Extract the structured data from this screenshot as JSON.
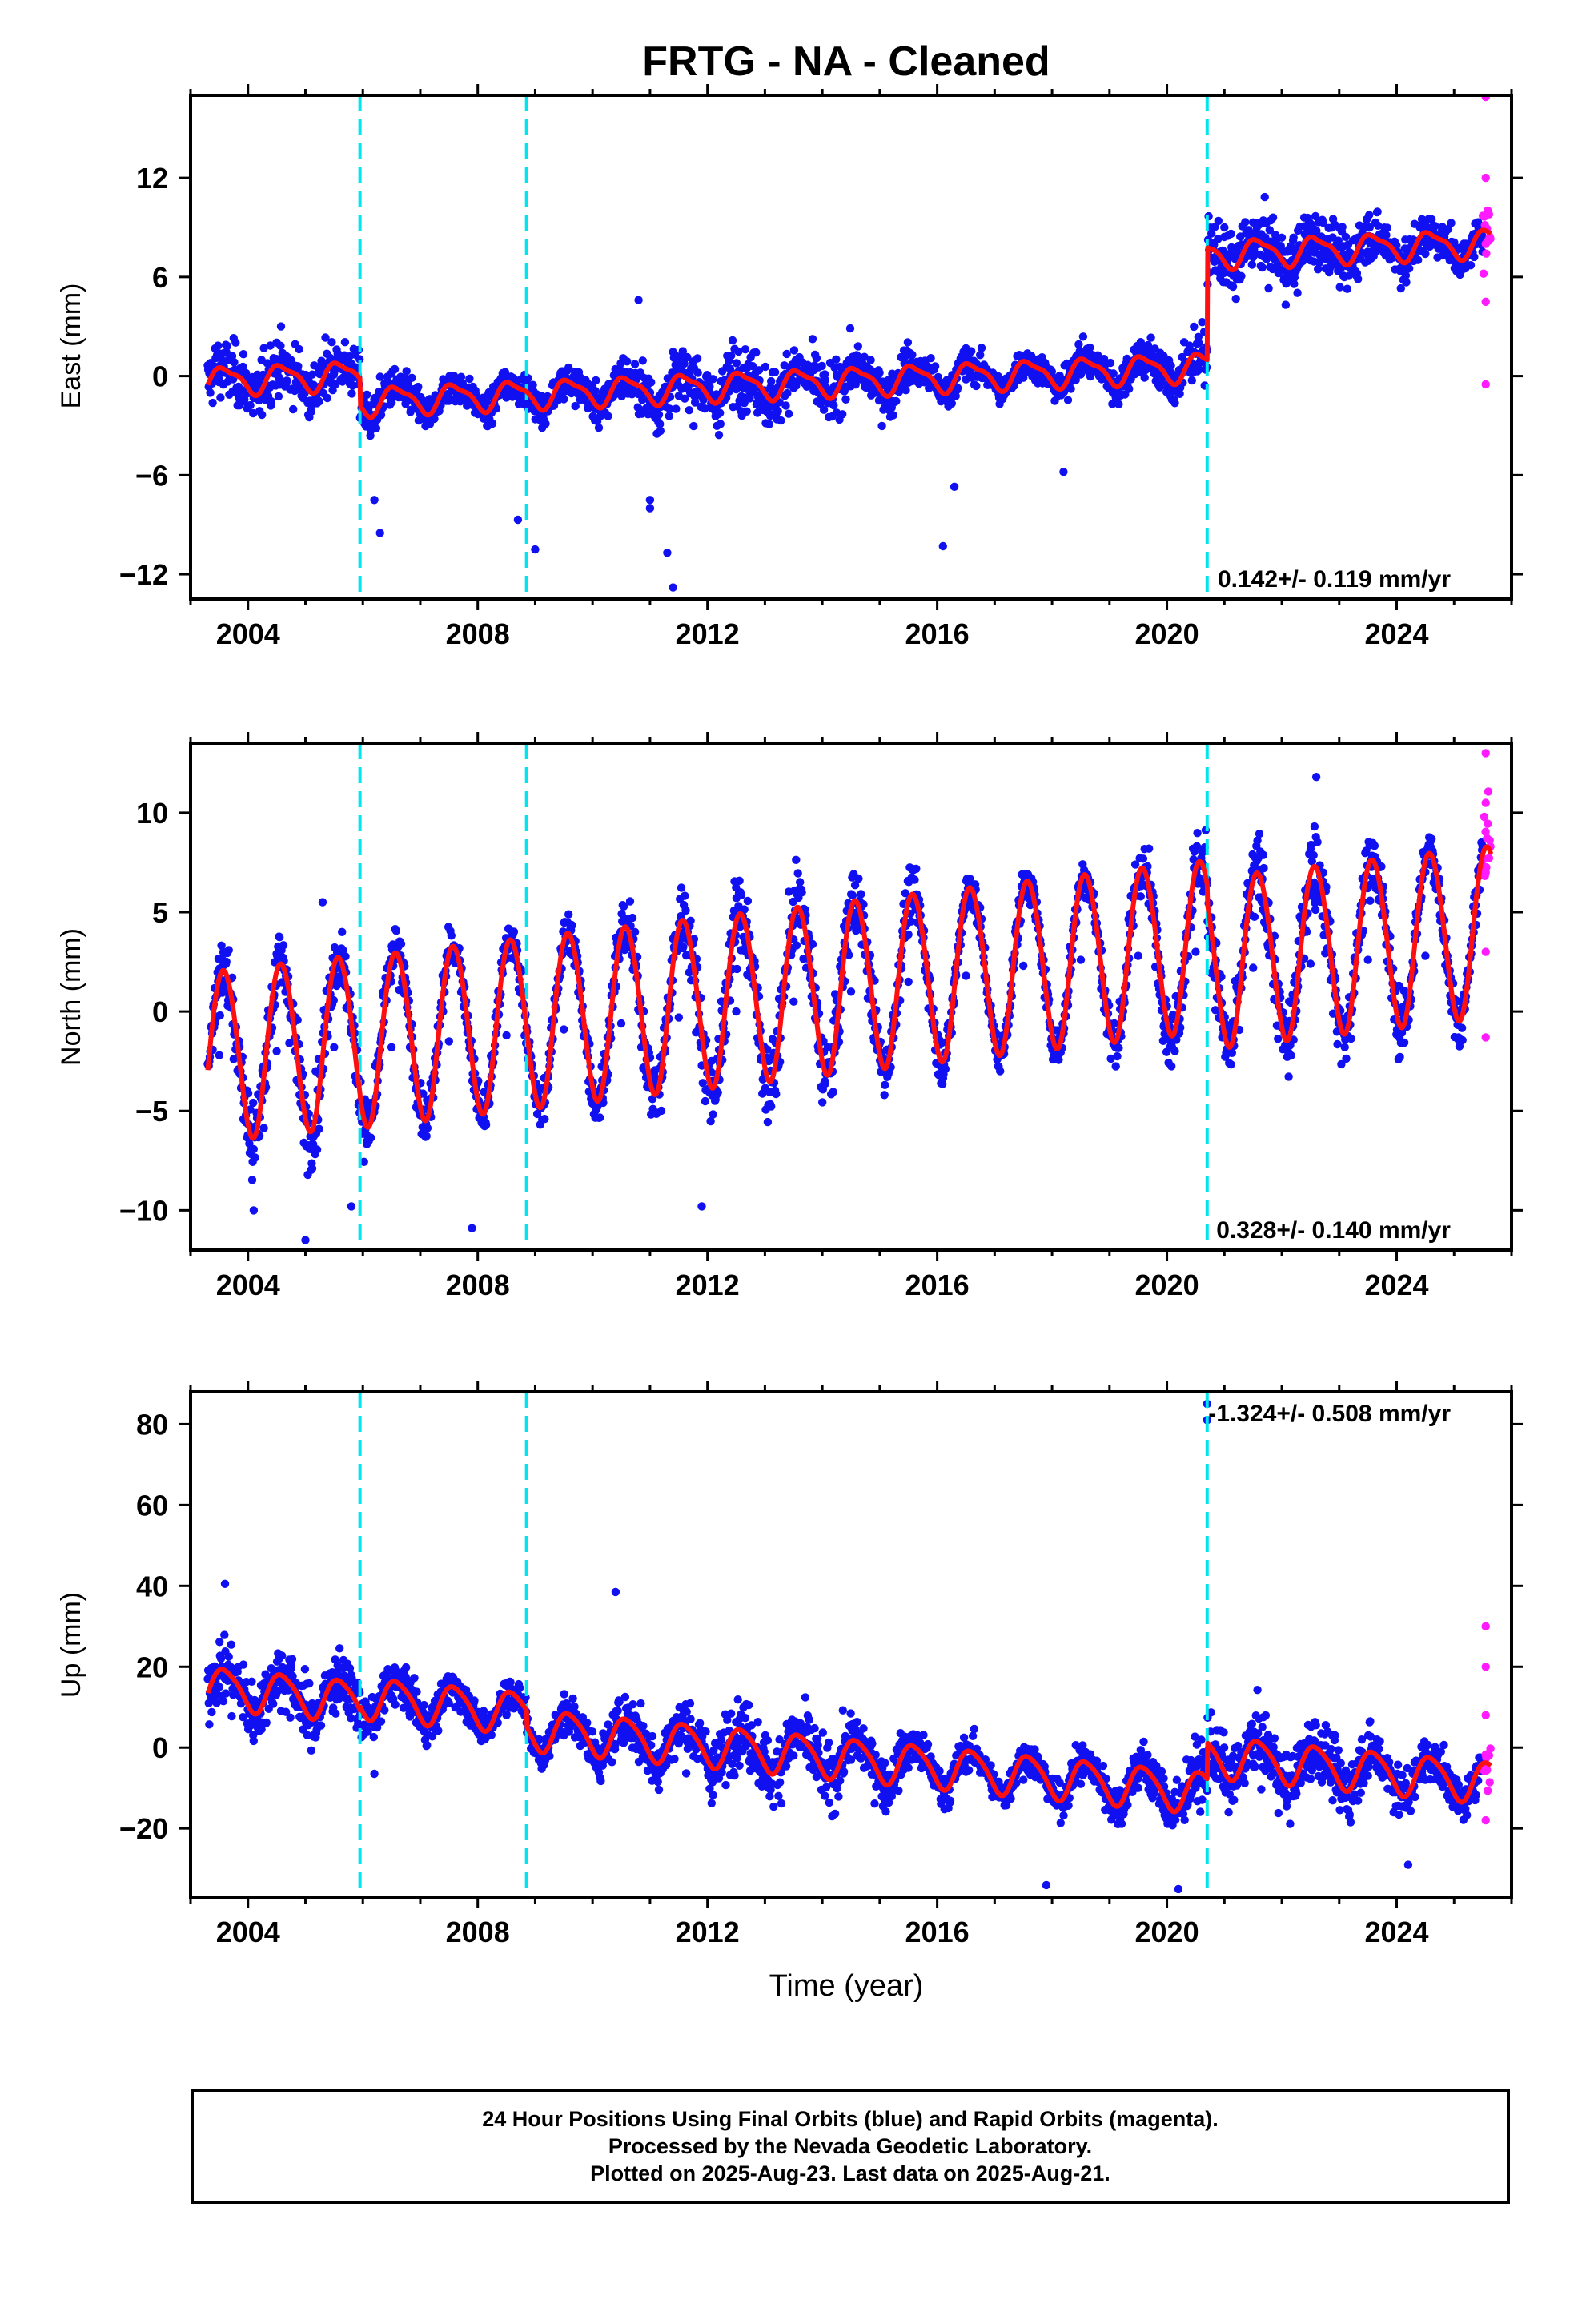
{
  "title": "FRTG  - NA - Cleaned",
  "xlabel": "Time (year)",
  "footer": {
    "line1": "24 Hour Positions Using Final Orbits (blue) and Rapid Orbits (magenta).",
    "line2": "Processed by the Nevada Geodetic Laboratory.",
    "line3": "Plotted on 2025-Aug-23. Last data on 2025-Aug-21."
  },
  "colors": {
    "final_orbits": "#1010f0",
    "rapid_orbits": "#ff1aff",
    "model": "#ff1010",
    "offsets": "#00e5ee"
  },
  "chart_data": [
    {
      "type": "scatter",
      "component": "east",
      "ylabel": "East (mm)",
      "rate_label": "0.142+/- 0.119 mm/yr",
      "xlim": [
        2003.0,
        2026.0
      ],
      "ylim": [
        -13.5,
        17.0
      ],
      "xticks": [
        2004,
        2008,
        2012,
        2016,
        2020,
        2024
      ],
      "yticks": [
        -12,
        -6,
        0,
        6,
        12
      ],
      "ytick_labels": [
        "−12",
        "−6",
        "0",
        "6",
        "12"
      ],
      "offset_epochs": [
        2005.95,
        2008.85,
        2020.7
      ],
      "start": 2003.3,
      "end": 2025.64,
      "rapid_start": 2025.5,
      "series": [
        {
          "label": "final_orbits",
          "x": [
            2003.5,
            2004.5,
            2005.5,
            2006.5,
            2007.5,
            2008.5,
            2009.5,
            2010.5,
            2011.5,
            2012.5,
            2013.5,
            2014.5,
            2015.5,
            2016.5,
            2017.5,
            2018.5,
            2019.5,
            2020.5,
            2021.5,
            2022.5,
            2023.5,
            2024.5
          ],
          "y": [
            -0.2,
            0.1,
            0.2,
            -1.6,
            -1.5,
            -1.3,
            -1.4,
            -1.0,
            -1.2,
            -0.8,
            -0.6,
            -0.4,
            -0.4,
            -0.2,
            -0.1,
            0.1,
            0.3,
            0.6,
            7.2,
            7.0,
            7.3,
            7.4
          ]
        },
        {
          "label": "rapid_orbits",
          "x": [
            2025.55,
            2025.55,
            2025.55,
            2025.55,
            2025.55
          ],
          "y": [
            17.0,
            12.0,
            8.0,
            4.5,
            -0.5
          ]
        }
      ],
      "outliers": [
        [
          2006.3,
          -9.5
        ],
        [
          2006.2,
          -7.5
        ],
        [
          2009.0,
          -10.5
        ],
        [
          2008.7,
          -8.7
        ],
        [
          2011.0,
          -7.5
        ],
        [
          2011.0,
          -8.0
        ],
        [
          2011.3,
          -10.7
        ],
        [
          2011.4,
          -12.8
        ],
        [
          2010.8,
          4.6
        ],
        [
          2016.1,
          -10.3
        ],
        [
          2016.3,
          -6.7
        ],
        [
          2018.2,
          -5.8
        ],
        [
          2021.0,
          9.0
        ]
      ],
      "model": {
        "segments": [
          {
            "from": 2003.3,
            "to": 2005.95,
            "intercept": -0.3,
            "rate": 0.142
          },
          {
            "from": 2005.95,
            "to": 2008.85,
            "intercept": -1.9,
            "rate": 0.142
          },
          {
            "from": 2008.85,
            "to": 2020.7,
            "intercept": -1.9,
            "rate": 0.142
          },
          {
            "from": 2020.7,
            "to": 2025.64,
            "intercept": 4.9,
            "rate": 0.142
          }
        ],
        "annual_amplitude": 0.8,
        "annual_peak_fraction": 0.6,
        "semiannual_amplitude": 0.25
      }
    },
    {
      "type": "scatter",
      "component": "north",
      "ylabel": "North (mm)",
      "rate_label": "0.328+/- 0.140 mm/yr",
      "xlim": [
        2003.0,
        2026.0
      ],
      "ylim": [
        -12.0,
        13.5
      ],
      "xticks": [
        2004,
        2008,
        2012,
        2016,
        2020,
        2024
      ],
      "yticks": [
        -10,
        -5,
        0,
        5,
        10
      ],
      "ytick_labels": [
        "−10",
        "−5",
        "0",
        "5",
        "10"
      ],
      "offset_epochs": [
        2005.95,
        2008.85,
        2020.7
      ],
      "start": 2003.3,
      "end": 2025.64,
      "rapid_start": 2025.5,
      "series": [
        {
          "label": "final_orbits",
          "x": [
            2003.5,
            2004.5,
            2005.5,
            2006.5,
            2007.5,
            2008.5,
            2009.5,
            2010.5,
            2011.5,
            2012.5,
            2013.5,
            2014.5,
            2015.5,
            2016.5,
            2017.5,
            2018.5,
            2019.5,
            2020.5,
            2021.5,
            2022.5,
            2023.5,
            2024.5
          ],
          "y": [
            -2.2,
            -2.0,
            -1.8,
            -1.8,
            -1.5,
            -1.2,
            -0.9,
            -0.6,
            -0.3,
            0.0,
            0.5,
            1.0,
            1.5,
            1.8,
            2.3,
            2.6,
            2.8,
            3.0,
            2.2,
            2.4,
            2.6,
            2.8
          ]
        },
        {
          "label": "rapid_orbits",
          "x": [
            2025.55,
            2025.55,
            2025.55,
            2025.55,
            2025.55
          ],
          "y": [
            13.0,
            10.5,
            7.0,
            3.0,
            -1.3
          ]
        }
      ],
      "outliers": [
        [
          2004.1,
          -10.0
        ],
        [
          2005.8,
          -9.8
        ],
        [
          2005.0,
          -11.5
        ],
        [
          2007.9,
          -10.9
        ],
        [
          2011.9,
          -9.8
        ],
        [
          2005.3,
          5.5
        ],
        [
          2022.6,
          11.8
        ]
      ],
      "model": {
        "segments": [
          {
            "from": 2003.3,
            "to": 2005.95,
            "intercept": -2.2,
            "rate": 0.328
          },
          {
            "from": 2005.95,
            "to": 2008.85,
            "intercept": -2.3,
            "rate": 0.328
          },
          {
            "from": 2008.85,
            "to": 2020.7,
            "intercept": -2.3,
            "rate": 0.328
          },
          {
            "from": 2020.7,
            "to": 2025.64,
            "intercept": -3.2,
            "rate": 0.328
          }
        ],
        "annual_amplitude": 4.3,
        "annual_peak_fraction": 0.58,
        "semiannual_amplitude": 0.2
      }
    },
    {
      "type": "scatter",
      "component": "up",
      "ylabel": "Up (mm)",
      "rate_label": "-1.324+/- 0.508 mm/yr",
      "xlim": [
        2003.0,
        2026.0
      ],
      "ylim": [
        -37.0,
        88.0
      ],
      "xticks": [
        2004,
        2008,
        2012,
        2016,
        2020,
        2024
      ],
      "yticks": [
        -20,
        0,
        20,
        40,
        60,
        80
      ],
      "ytick_labels": [
        "−20",
        "0",
        "20",
        "40",
        "60",
        "80"
      ],
      "offset_epochs": [
        2005.95,
        2008.85,
        2020.7
      ],
      "start": 2003.3,
      "end": 2025.64,
      "rapid_start": 2025.5,
      "series": [
        {
          "label": "final_orbits",
          "x": [
            2003.5,
            2004.5,
            2005.5,
            2006.5,
            2007.5,
            2008.5,
            2009.5,
            2010.5,
            2011.5,
            2012.5,
            2013.5,
            2014.5,
            2015.5,
            2016.5,
            2017.5,
            2018.5,
            2019.5,
            2020.5,
            2021.5,
            2022.5,
            2023.5,
            2024.5
          ],
          "y": [
            15,
            14,
            13,
            12,
            11,
            8,
            3,
            2,
            1,
            0,
            -2,
            -3,
            -5,
            -6,
            -8,
            -9,
            -10,
            -10,
            -4,
            -5,
            -7,
            -8
          ]
        },
        {
          "label": "rapid_orbits",
          "x": [
            2025.55,
            2025.55,
            2025.55,
            2025.55,
            2025.55
          ],
          "y": [
            30,
            20,
            8,
            -5,
            -18
          ]
        }
      ],
      "outliers": [
        [
          2003.6,
          40.5
        ],
        [
          2010.4,
          38.5
        ],
        [
          2020.7,
          85.0
        ],
        [
          2020.7,
          81.0
        ],
        [
          2006.2,
          -6.5
        ],
        [
          2017.9,
          -34.0
        ],
        [
          2024.2,
          -29.0
        ],
        [
          2020.2,
          -35.0
        ]
      ],
      "model": {
        "segments": [
          {
            "from": 2003.3,
            "to": 2005.95,
            "intercept": 15.0,
            "rate": -1.324
          },
          {
            "from": 2005.95,
            "to": 2008.85,
            "intercept": 16.0,
            "rate": -1.324
          },
          {
            "from": 2008.85,
            "to": 2020.7,
            "intercept": 12.0,
            "rate": -1.324
          },
          {
            "from": 2020.7,
            "to": 2025.64,
            "intercept": 21.0,
            "rate": -1.324
          }
        ],
        "annual_amplitude": 5.0,
        "annual_peak_fraction": 0.6,
        "semiannual_amplitude": 0.8
      }
    }
  ]
}
